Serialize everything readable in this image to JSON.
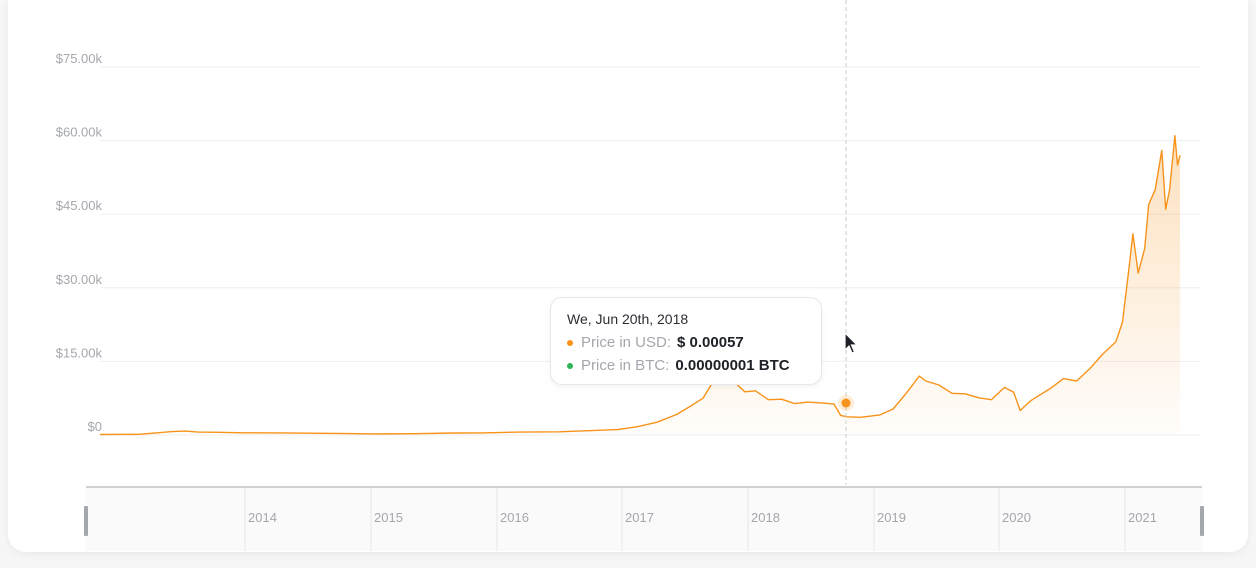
{
  "chart_data": {
    "type": "area",
    "y_tick_labels": [
      "$0",
      "$15.00k",
      "$30.00k",
      "$45.00k",
      "$60.00k",
      "$75.00k"
    ],
    "y_ticks": [
      0,
      15000,
      30000,
      45000,
      60000,
      75000
    ],
    "ylim": [
      0,
      75000
    ],
    "x_tick_labels": [
      "2014",
      "2015",
      "2016",
      "2017",
      "2018",
      "2019",
      "2020",
      "2021"
    ],
    "xlim": [
      2013.2,
      2021.5
    ],
    "grid": true,
    "series": [
      {
        "x": [
          2013.2,
          2013.5,
          2013.75,
          2013.85,
          2013.95,
          2014.1,
          2014.3,
          2014.6,
          2014.9,
          2015.1,
          2015.3,
          2015.6,
          2015.9,
          2016.1,
          2016.4,
          2016.7,
          2016.95,
          2017.15,
          2017.3,
          2017.45,
          2017.6,
          2017.7,
          2017.8,
          2017.88,
          2017.93,
          2017.96,
          2018.0,
          2018.05,
          2018.12,
          2018.2,
          2018.3,
          2018.4,
          2018.5,
          2018.6,
          2018.72,
          2018.8,
          2018.85,
          2018.9,
          2019.0,
          2019.15,
          2019.25,
          2019.35,
          2019.45,
          2019.5,
          2019.6,
          2019.7,
          2019.8,
          2019.9,
          2020.0,
          2020.1,
          2020.17,
          2020.22,
          2020.3,
          2020.45,
          2020.55,
          2020.65,
          2020.75,
          2020.85,
          2020.95,
          2021.0,
          2021.05,
          2021.08,
          2021.12,
          2021.17,
          2021.2,
          2021.25,
          2021.3,
          2021.33,
          2021.36,
          2021.4,
          2021.42,
          2021.44
        ],
        "y": [
          100,
          150,
          700,
          800,
          600,
          550,
          450,
          420,
          350,
          280,
          230,
          260,
          400,
          420,
          600,
          650,
          900,
          1100,
          1700,
          2600,
          4200,
          5800,
          7500,
          11000,
          17000,
          15000,
          11000,
          10500,
          8800,
          9000,
          7200,
          7300,
          6400,
          6700,
          6500,
          6300,
          4000,
          3700,
          3600,
          4100,
          5300,
          8500,
          12000,
          11000,
          10200,
          8500,
          8400,
          7600,
          7200,
          9700,
          8700,
          5000,
          7000,
          9500,
          11500,
          11000,
          13500,
          16500,
          19000,
          23000,
          34000,
          41000,
          33000,
          38000,
          47000,
          50000,
          58000,
          46000,
          50000,
          61000,
          55000,
          57000
        ]
      }
    ]
  },
  "tooltip": {
    "date": "We, Jun 20th, 2018",
    "usd_label": "Price in USD:",
    "usd_value": "$ 0.00057",
    "btc_label": "Price in BTC:",
    "btc_value": "0.00000001 BTC"
  },
  "colors": {
    "line": "#f7931a",
    "usd_dot": "#f7931a",
    "btc_dot": "#2fb45a",
    "grid": "#efeff1",
    "crosshair": "#c9cbcf"
  }
}
